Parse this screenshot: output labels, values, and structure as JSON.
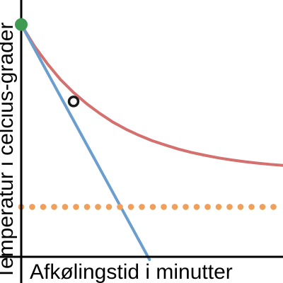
{
  "chart_data": {
    "type": "line",
    "xlabel": "Afkølingstid i minutter",
    "ylabel": "Temperatur i celcius-grader",
    "xlim": [
      0,
      10
    ],
    "ylim": [
      0,
      10
    ],
    "grid": false,
    "series": [
      {
        "kind": "curve",
        "x": [
          0,
          0.5,
          1,
          1.5,
          2,
          2.5,
          3,
          3.5,
          4,
          4.5,
          5,
          5.5,
          6,
          6.5,
          7,
          7.5,
          8,
          8.5,
          9,
          9.5,
          10
        ],
        "y": [
          9.12,
          8.28,
          7.58,
          6.96,
          6.45,
          6.01,
          5.63,
          5.29,
          5.01,
          4.77,
          4.56,
          4.39,
          4.23,
          4.1,
          3.99,
          3.89,
          3.81,
          3.74,
          3.68,
          3.63,
          3.59
        ],
        "color": "#d4706e"
      },
      {
        "kind": "line",
        "x": [
          0,
          4.9
        ],
        "y": [
          9.12,
          -0.11
        ],
        "color": "#6a9ecf"
      },
      {
        "kind": "dotted-line",
        "x": [
          0,
          10
        ],
        "y": [
          1.96,
          1.96
        ],
        "color": "#f0a05a"
      }
    ],
    "points": [
      {
        "x": 0,
        "y": 9.12,
        "style": "filled",
        "color": "#3f9a52"
      },
      {
        "x": 2,
        "y": 6.1,
        "style": "hollow",
        "color": "#1a1a1a"
      }
    ]
  }
}
